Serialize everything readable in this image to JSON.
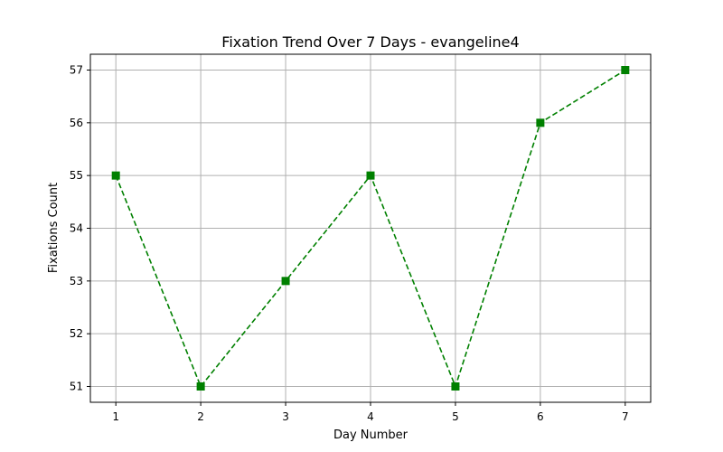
{
  "chart_data": {
    "type": "line",
    "title": "Fixation Trend Over 7 Days - evangeline4",
    "xlabel": "Day Number",
    "ylabel": "Fixations Count",
    "x": [
      1,
      2,
      3,
      4,
      5,
      6,
      7
    ],
    "series": [
      {
        "values": [
          55,
          51,
          53,
          55,
          51,
          56,
          57
        ],
        "color": "#008000",
        "line_style": "dashed",
        "marker": "square"
      }
    ],
    "xlim": [
      0.7,
      7.3
    ],
    "ylim": [
      50.7,
      57.3
    ],
    "xticks": [
      1,
      2,
      3,
      4,
      5,
      6,
      7
    ],
    "yticks": [
      51,
      52,
      53,
      54,
      55,
      56,
      57
    ],
    "grid": true,
    "grid_color": "#b0b0b0"
  }
}
